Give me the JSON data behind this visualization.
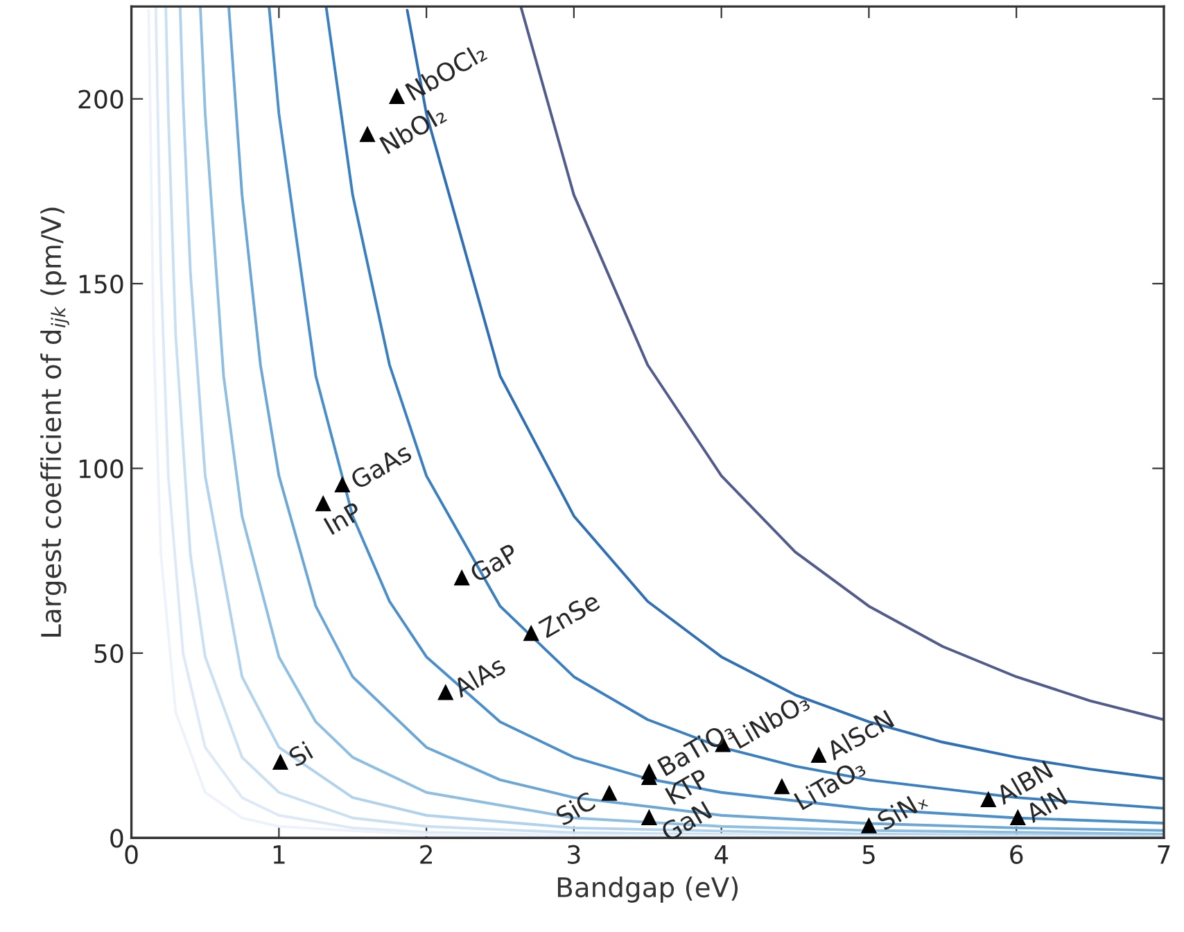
{
  "chart_data": {
    "type": "line",
    "xlabel": "Bandgap (eV)",
    "ylabel": "Largest coefficient of d$_{ijk}$ (pm/V)",
    "xlim": [
      0,
      7
    ],
    "ylim": [
      0,
      225
    ],
    "xticks": [
      0,
      1,
      2,
      3,
      4,
      5,
      6,
      7
    ],
    "yticks": [
      0,
      50,
      100,
      150,
      200
    ],
    "grid": false,
    "series": [
      {
        "color": "#515c8c",
        "x": [
          2.64,
          3,
          3.5,
          4,
          4.5,
          5,
          5.5,
          6,
          6.5,
          7
        ],
        "values": [
          225,
          174,
          128,
          98,
          77.4,
          62.7,
          51.8,
          43.6,
          37.1,
          32
        ]
      },
      {
        "color": "#2f6fb5",
        "x": [
          1.87,
          2,
          2.5,
          3,
          3.5,
          4,
          4.5,
          5,
          5.5,
          6,
          6.5,
          7
        ],
        "values": [
          224,
          196,
          125,
          87.1,
          64,
          49,
          38.7,
          31.4,
          25.9,
          21.8,
          18.6,
          16
        ]
      },
      {
        "color": "#3a7fc0",
        "x": [
          1.32,
          1.5,
          1.75,
          2,
          2.5,
          3,
          3.5,
          4,
          4.5,
          5,
          6,
          7
        ],
        "values": [
          225,
          174,
          128,
          98,
          62.7,
          43.6,
          32,
          24.5,
          19.4,
          15.7,
          10.9,
          8
        ]
      },
      {
        "color": "#4a8fcb",
        "x": [
          0.933,
          1,
          1.25,
          1.5,
          1.75,
          2,
          2.5,
          3,
          3.5,
          4,
          5,
          6,
          7
        ],
        "values": [
          225,
          196,
          125,
          87.1,
          64,
          49,
          31.4,
          21.8,
          16,
          12.3,
          7.8,
          5.4,
          4
        ]
      },
      {
        "color": "#6aa6d6",
        "x": [
          0.66,
          0.75,
          0.875,
          1,
          1.25,
          1.5,
          2,
          2.5,
          3,
          4,
          5,
          6,
          7
        ],
        "values": [
          225,
          174,
          128,
          98,
          62.7,
          43.6,
          24.5,
          15.7,
          10.9,
          6.1,
          3.9,
          2.7,
          2
        ]
      },
      {
        "color": "#8ebfe2",
        "x": [
          0.467,
          0.5,
          0.625,
          0.75,
          1,
          1.25,
          1.5,
          2,
          3,
          4,
          5,
          7
        ],
        "values": [
          225,
          196,
          125,
          87.1,
          49,
          31.4,
          21.8,
          12.3,
          5.4,
          3.1,
          2,
          1
        ]
      },
      {
        "color": "#b0d2ec",
        "x": [
          0.33,
          0.35,
          0.4,
          0.5,
          0.75,
          1,
          1.5,
          2,
          3,
          5,
          7
        ],
        "values": [
          225,
          200,
          153,
          98,
          43.6,
          24.5,
          10.9,
          6.1,
          2.7,
          1,
          0.5
        ]
      },
      {
        "color": "#c9e0f2",
        "x": [
          0.233,
          0.25,
          0.3,
          0.4,
          0.5,
          0.75,
          1,
          1.5,
          2,
          3,
          5,
          7
        ],
        "values": [
          225,
          196,
          136,
          76.6,
          49,
          21.8,
          12.3,
          5.4,
          3.1,
          1.4,
          0.5,
          0.3
        ]
      },
      {
        "color": "#dde9f7",
        "x": [
          0.165,
          0.2,
          0.25,
          0.35,
          0.5,
          0.75,
          1,
          1.5,
          2,
          3,
          7
        ],
        "values": [
          225,
          153,
          98,
          50,
          24.5,
          10.9,
          6.1,
          2.7,
          1.5,
          0.7,
          0.1
        ]
      },
      {
        "color": "#eef3fb",
        "x": [
          0.117,
          0.15,
          0.2,
          0.3,
          0.5,
          0.75,
          1,
          2,
          7
        ],
        "values": [
          224,
          136,
          76.6,
          34,
          12.3,
          5.4,
          3.1,
          0.8,
          0.1
        ]
      },
      {
        "type": "scatter",
        "color": "#000000",
        "marker": "triangle",
        "x": [
          1.01,
          1.3,
          1.43,
          1.6,
          1.8,
          2.24,
          2.13,
          2.71,
          3.24,
          3.51,
          3.51,
          3.51,
          4.01,
          4.41,
          4.66,
          5.0,
          5.81,
          6.01
        ],
        "values": [
          20.6,
          90.6,
          95.7,
          190.5,
          200.8,
          70.5,
          39.5,
          55.5,
          12.2,
          18,
          16.5,
          5.6,
          25.4,
          14,
          22.5,
          3.4,
          10.5,
          5.6
        ]
      }
    ],
    "annotations": [
      {
        "text": "Si",
        "x": 1.01,
        "y": 20.6
      },
      {
        "text": "InP",
        "x": 1.3,
        "y": 90.6
      },
      {
        "text": "GaAs",
        "x": 1.43,
        "y": 95.7
      },
      {
        "text": "NbOI₂",
        "x": 1.6,
        "y": 190.5
      },
      {
        "text": "NbOCl₂",
        "x": 1.8,
        "y": 200.8
      },
      {
        "text": "GaP",
        "x": 2.24,
        "y": 70.5
      },
      {
        "text": "AlAs",
        "x": 2.13,
        "y": 39.5
      },
      {
        "text": "ZnSe",
        "x": 2.71,
        "y": 55.5
      },
      {
        "text": "SiC",
        "x": 3.24,
        "y": 12.2
      },
      {
        "text": "BaTiO₃",
        "x": 3.51,
        "y": 18
      },
      {
        "text": "KTP",
        "x": 3.51,
        "y": 16.5
      },
      {
        "text": "GaN",
        "x": 3.51,
        "y": 5.6
      },
      {
        "text": "LiNbO₃",
        "x": 4.01,
        "y": 25.4
      },
      {
        "text": "LiTaO₃",
        "x": 4.41,
        "y": 14
      },
      {
        "text": "AlScN",
        "x": 4.66,
        "y": 22.5
      },
      {
        "text": "SiNₓ",
        "x": 5.0,
        "y": 3.4
      },
      {
        "text": "AlBN",
        "x": 5.81,
        "y": 10.5
      },
      {
        "text": "AlN",
        "x": 6.01,
        "y": 5.6
      }
    ]
  }
}
